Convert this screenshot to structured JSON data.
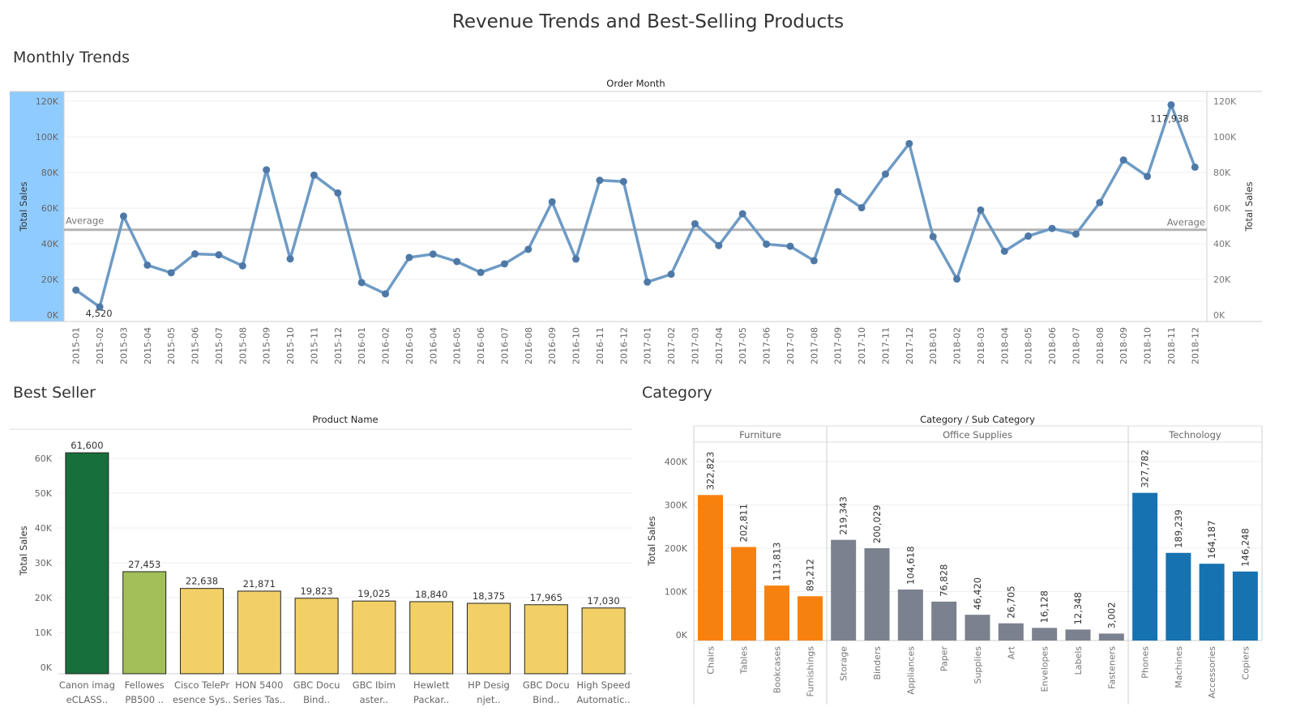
{
  "dashboard_title": "Revenue Trends and Best-Selling Products",
  "sections": {
    "trends": "Monthly Trends",
    "best_seller": "Best Seller",
    "category": "Category"
  },
  "colors": {
    "line": "#6e9bc5",
    "point": "#4e79a7",
    "average": "#b3b3b3",
    "highlight_band": "#8fcbff",
    "best_top": "#17703b",
    "best_second": "#a3bf59",
    "best_rest": "#f2d066",
    "furniture": "#f7810f",
    "office_supplies": "#7b818e",
    "technology": "#1672b1"
  },
  "chart_data": [
    {
      "type": "line",
      "column_title": "Order Month",
      "ylabel_left": "Total Sales",
      "ylabel_right": "Total Sales",
      "ylim": [
        0,
        120000
      ],
      "yticks": [
        0,
        20000,
        40000,
        60000,
        80000,
        100000,
        120000
      ],
      "ytick_labels": [
        "0K",
        "20K",
        "40K",
        "60K",
        "80K",
        "100K",
        "120K"
      ],
      "reference_line": {
        "label": "Average",
        "value": 47859
      },
      "x": [
        "2015-01",
        "2015-02",
        "2015-03",
        "2015-04",
        "2015-05",
        "2015-06",
        "2015-07",
        "2015-08",
        "2015-09",
        "2015-10",
        "2015-11",
        "2015-12",
        "2016-01",
        "2016-02",
        "2016-03",
        "2016-04",
        "2016-05",
        "2016-06",
        "2016-07",
        "2016-08",
        "2016-09",
        "2016-10",
        "2016-11",
        "2016-12",
        "2017-01",
        "2017-02",
        "2017-03",
        "2017-04",
        "2017-05",
        "2017-06",
        "2017-07",
        "2017-08",
        "2017-09",
        "2017-10",
        "2017-11",
        "2017-12",
        "2018-01",
        "2018-02",
        "2018-03",
        "2018-04",
        "2018-05",
        "2018-06",
        "2018-07",
        "2018-08",
        "2018-09",
        "2018-10",
        "2018-11",
        "2018-12"
      ],
      "values": [
        14000,
        4520,
        55500,
        28000,
        23700,
        34300,
        33800,
        27600,
        81500,
        31500,
        78500,
        68500,
        18200,
        11900,
        32300,
        34200,
        30000,
        23900,
        28700,
        36900,
        63500,
        31400,
        75600,
        74900,
        18500,
        22900,
        51200,
        39000,
        56800,
        39800,
        38600,
        30500,
        69200,
        60200,
        79100,
        96200,
        44000,
        20200,
        58900,
        35800,
        44300,
        48600,
        45400,
        63100,
        87000,
        77800,
        117938,
        83000
      ],
      "point_labels": [
        {
          "index": 1,
          "text": "4,520"
        },
        {
          "index": 46,
          "text": "117,938"
        }
      ]
    },
    {
      "type": "bar",
      "column_title": "Product Name",
      "ylabel": "Total Sales",
      "ylim": [
        0,
        65000
      ],
      "yticks": [
        0,
        10000,
        20000,
        30000,
        40000,
        50000,
        60000
      ],
      "ytick_labels": [
        "0K",
        "10K",
        "20K",
        "30K",
        "40K",
        "50K",
        "60K"
      ],
      "categories": [
        [
          "Canon imag",
          "eCLASS.."
        ],
        [
          "Fellowes",
          "PB500 .."
        ],
        [
          "Cisco TelePr",
          "esence Sys.."
        ],
        [
          "HON 5400",
          "Series Tas.."
        ],
        [
          "GBC Docu",
          "Bind.."
        ],
        [
          "GBC Ibim",
          "aster.."
        ],
        [
          "Hewlett",
          "Packar.."
        ],
        [
          "HP Desig",
          "njet.."
        ],
        [
          "GBC Docu",
          "Bind.."
        ],
        [
          "High Speed",
          "Automatic.."
        ]
      ],
      "values": [
        61600,
        27453,
        22638,
        21871,
        19823,
        19025,
        18840,
        18375,
        17965,
        17030
      ],
      "labels": [
        "61,600",
        "27,453",
        "22,638",
        "21,871",
        "19,823",
        "19,025",
        "18,840",
        "18,375",
        "17,965",
        "17,030"
      ]
    },
    {
      "type": "bar",
      "column_title": "Category  /  Sub Category",
      "ylabel": "Total Sales",
      "ylim": [
        0,
        450000
      ],
      "yticks": [
        0,
        100000,
        200000,
        300000,
        400000
      ],
      "ytick_labels": [
        "0K",
        "100K",
        "200K",
        "300K",
        "400K"
      ],
      "groups": [
        {
          "name": "Furniture",
          "color_key": "furniture",
          "categories": [
            "Chairs",
            "Tables",
            "Bookcases",
            "Furnishings"
          ],
          "values": [
            322823,
            202811,
            113813,
            89212
          ],
          "labels": [
            "322,823",
            "202,811",
            "113,813",
            "89,212"
          ]
        },
        {
          "name": "Office Supplies",
          "color_key": "office_supplies",
          "categories": [
            "Storage",
            "Binders",
            "Appliances",
            "Paper",
            "Supplies",
            "Art",
            "Envelopes",
            "Labels",
            "Fasteners"
          ],
          "values": [
            219343,
            200029,
            104618,
            76828,
            46420,
            26705,
            16128,
            12348,
            3002
          ],
          "labels": [
            "219,343",
            "200,029",
            "104,618",
            "76,828",
            "46,420",
            "26,705",
            "16,128",
            "12,348",
            "3,002"
          ]
        },
        {
          "name": "Technology",
          "color_key": "technology",
          "categories": [
            "Phones",
            "Machines",
            "Accessories",
            "Copiers"
          ],
          "values": [
            327782,
            189239,
            164187,
            146248
          ],
          "labels": [
            "327,782",
            "189,239",
            "164,187",
            "146,248"
          ]
        }
      ]
    }
  ]
}
